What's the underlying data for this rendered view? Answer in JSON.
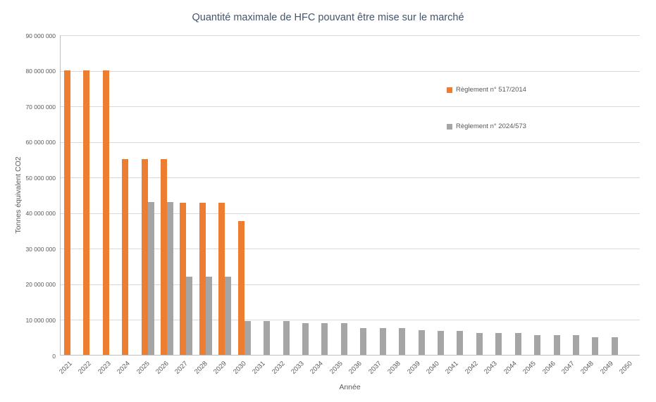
{
  "chart_data": {
    "type": "bar",
    "title": "Quantité maximale de HFC pouvant être mise sur le marché",
    "xlabel": "Année",
    "ylabel": "Tonnes équivalent CO2",
    "ylim": [
      0,
      90000000
    ],
    "ytick_step": 10000000,
    "ytick_labels": [
      "0",
      "10 000 000",
      "20 000 000",
      "30 000 000",
      "40 000 000",
      "50 000 000",
      "60 000 000",
      "70 000 000",
      "80 000 000",
      "90 000 000"
    ],
    "grid": true,
    "legend_position": "inside-right",
    "categories": [
      "2021",
      "2022",
      "2023",
      "2024",
      "2025",
      "2026",
      "2027",
      "2028",
      "2029",
      "2030",
      "2031",
      "2032",
      "2033",
      "2034",
      "2035",
      "2036",
      "2037",
      "2038",
      "2039",
      "2040",
      "2041",
      "2042",
      "2043",
      "2044",
      "2045",
      "2046",
      "2047",
      "2048",
      "2049",
      "2050"
    ],
    "series": [
      {
        "name": "Règlement n° 517/2014",
        "color": "#ED7D31",
        "values": [
          80000000,
          80000000,
          80000000,
          55000000,
          55000000,
          55000000,
          42800000,
          42800000,
          42800000,
          37500000,
          0,
          0,
          0,
          0,
          0,
          0,
          0,
          0,
          0,
          0,
          0,
          0,
          0,
          0,
          0,
          0,
          0,
          0,
          0,
          0
        ]
      },
      {
        "name": "Règlement n° 2024/573",
        "color": "#A5A5A5",
        "values": [
          0,
          0,
          0,
          0,
          43000000,
          43000000,
          22000000,
          22000000,
          22000000,
          9500000,
          9500000,
          9500000,
          9000000,
          9000000,
          9000000,
          7500000,
          7500000,
          7500000,
          6900000,
          6800000,
          6800000,
          6200000,
          6200000,
          6200000,
          5500000,
          5500000,
          5500000,
          5000000,
          5000000,
          0
        ]
      }
    ]
  }
}
